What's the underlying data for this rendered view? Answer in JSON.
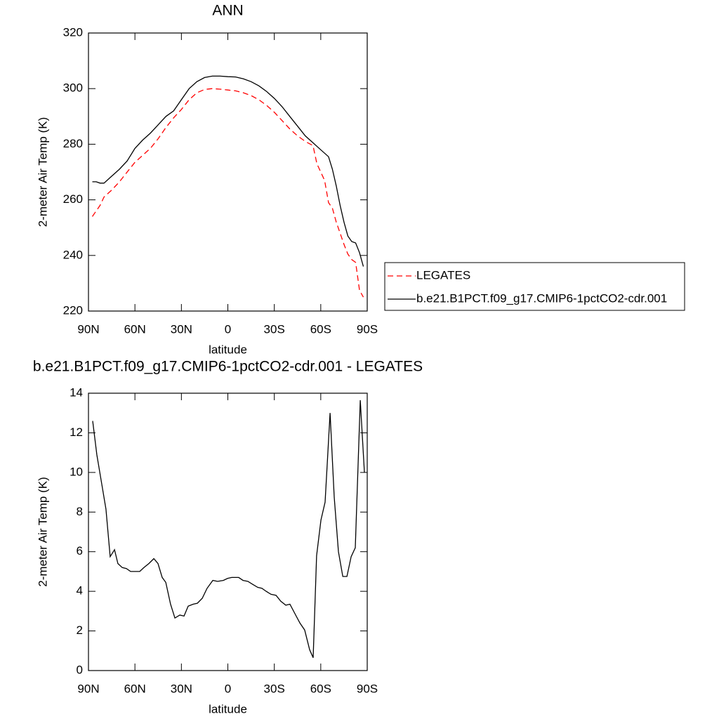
{
  "chart_data": [
    {
      "type": "line",
      "title": "ANN",
      "xlabel": "latitude",
      "ylabel": "2-meter Air Temp (K)",
      "xlim": [
        90,
        -90
      ],
      "xticks": [
        {
          "value": 90,
          "label": "90N"
        },
        {
          "value": 60,
          "label": "60N"
        },
        {
          "value": 30,
          "label": "30N"
        },
        0,
        {
          "value": -30,
          "label": "30S"
        },
        {
          "value": -60,
          "label": "60S"
        },
        {
          "value": -90,
          "label": "90S"
        }
      ],
      "ylim": [
        220,
        320
      ],
      "yticks": [
        220,
        240,
        260,
        280,
        300,
        320
      ],
      "legend": "right",
      "series": [
        {
          "name": "LEGATES",
          "color": "#ff0000",
          "dashed": true,
          "x": [
            87.5,
            85,
            82.5,
            80,
            75,
            70,
            65,
            60,
            55,
            50,
            45,
            40,
            35,
            30,
            25,
            20,
            15,
            10,
            5,
            0,
            -5,
            -10,
            -15,
            -20,
            -25,
            -30,
            -35,
            -40,
            -45,
            -50,
            -55,
            -57.5,
            -60,
            -62.5,
            -65,
            -67.5,
            -70,
            -72.5,
            -75,
            -77.5,
            -80,
            -82.5,
            -85,
            -87.5
          ],
          "values": [
            254,
            256,
            258,
            261,
            263.5,
            266.5,
            270,
            273.5,
            276,
            278.5,
            282,
            286,
            289.5,
            292.5,
            296,
            298.5,
            299.7,
            300,
            299.8,
            299.5,
            299.2,
            298.5,
            297.5,
            296,
            294,
            291.5,
            288.5,
            285.5,
            283,
            281,
            279.5,
            273,
            270,
            267,
            259,
            257,
            252,
            248,
            244,
            240.5,
            238.5,
            237.5,
            227.5,
            225
          ]
        },
        {
          "name": "b.e21.B1PCT.f09_g17.CMIP6-1pctCO2-cdr.001",
          "color": "#000000",
          "dashed": false,
          "x": [
            87.5,
            85,
            82.5,
            80,
            75,
            70,
            65,
            60,
            55,
            50,
            45,
            40,
            35,
            30,
            25,
            20,
            15,
            10,
            5,
            0,
            -5,
            -10,
            -15,
            -20,
            -25,
            -30,
            -35,
            -40,
            -45,
            -50,
            -55,
            -60,
            -65,
            -67.5,
            -70,
            -72.5,
            -75,
            -77.5,
            -80,
            -82.5,
            -85,
            -87.5
          ],
          "values": [
            266.5,
            266.5,
            266,
            266,
            268.5,
            271,
            274,
            278.5,
            281.5,
            284,
            287,
            290,
            292,
            296,
            300,
            302.5,
            304,
            304.5,
            304.5,
            304.3,
            304.2,
            303.5,
            302.5,
            301,
            299,
            296.5,
            293.5,
            290,
            286.5,
            283,
            280.5,
            278,
            275.5,
            271,
            265,
            258,
            252,
            247,
            245,
            244.5,
            241,
            236
          ]
        }
      ]
    },
    {
      "type": "line",
      "title": "b.e21.B1PCT.f09_g17.CMIP6-1pctCO2-cdr.001 - LEGATES",
      "xlabel": "latitude",
      "ylabel": "2-meter Air Temp (K)",
      "xlim": [
        90,
        -90
      ],
      "xticks": [
        {
          "value": 90,
          "label": "90N"
        },
        {
          "value": 60,
          "label": "60N"
        },
        {
          "value": 30,
          "label": "30N"
        },
        0,
        {
          "value": -30,
          "label": "30S"
        },
        {
          "value": -60,
          "label": "60S"
        },
        {
          "value": -90,
          "label": "90S"
        }
      ],
      "ylim": [
        0,
        14
      ],
      "yticks": [
        0,
        2,
        4,
        6,
        8,
        10,
        12,
        14
      ],
      "series": [
        {
          "color": "#000000",
          "dashed": false,
          "x": [
            87.3,
            84.6,
            81.4,
            78.7,
            76,
            73.2,
            71,
            68.2,
            65.5,
            62.8,
            56.9,
            54.2,
            51,
            47.8,
            45.1,
            42.4,
            40.1,
            37,
            34.2,
            31,
            28.3,
            25.6,
            22.4,
            19.7,
            16.5,
            13.4,
            9.7,
            6.6,
            2.9,
            0.2,
            -2.5,
            -7,
            -9.8,
            -12.9,
            -16.1,
            -19.3,
            -22,
            -24.7,
            -27.9,
            -31.1,
            -34.2,
            -37.4,
            -40.1,
            -43.8,
            -46.5,
            -49.6,
            -52.8,
            -55.1,
            -57.3,
            -60.1,
            -62.8,
            -66,
            -68.7,
            -71.4,
            -74.2,
            -76.9,
            -79.6,
            -82.3,
            -85.5,
            -88.2
          ],
          "values": [
            12.6,
            10.9,
            9.4,
            8.15,
            5.75,
            6.1,
            5.4,
            5.2,
            5.15,
            5.0,
            5.0,
            5.2,
            5.4,
            5.65,
            5.4,
            4.7,
            4.45,
            3.35,
            2.65,
            2.8,
            2.75,
            3.25,
            3.35,
            3.4,
            3.65,
            4.15,
            4.55,
            4.5,
            4.55,
            4.65,
            4.7,
            4.7,
            4.55,
            4.5,
            4.35,
            4.2,
            4.15,
            4.0,
            3.85,
            3.8,
            3.5,
            3.3,
            3.35,
            2.8,
            2.4,
            2.05,
            1.05,
            0.65,
            5.8,
            7.6,
            8.5,
            13.0,
            8.75,
            6.0,
            4.75,
            4.75,
            5.75,
            6.2,
            13.65,
            10.0
          ]
        }
      ]
    }
  ]
}
